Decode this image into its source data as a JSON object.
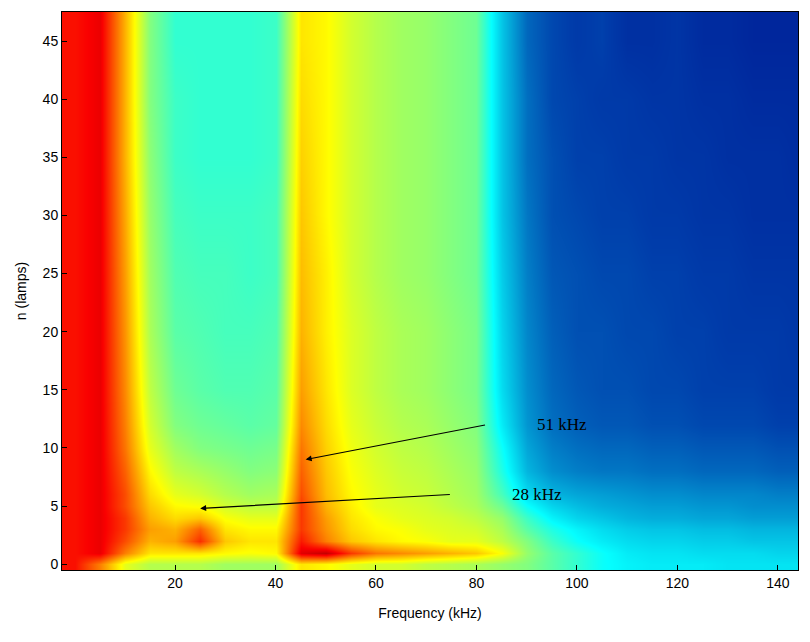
{
  "chart_data": {
    "type": "heatmap",
    "x_label": "Frequency (kHz)",
    "y_label": "n (lamps)",
    "xlim": [
      -2.5,
      144
    ],
    "ylim": [
      -0.5,
      47.5
    ],
    "xticks": [
      20,
      40,
      60,
      80,
      100,
      120,
      140
    ],
    "yticks": [
      0,
      5,
      10,
      15,
      20,
      25,
      30,
      35,
      40,
      45
    ],
    "color": "Jet",
    "zlim": [
      0,
      10
    ],
    "x": [
      0,
      5,
      10,
      15,
      20,
      25,
      30,
      35,
      40,
      45,
      50,
      55,
      60,
      65,
      70,
      75,
      80,
      85,
      90,
      95,
      100,
      105,
      110,
      115,
      120,
      125,
      130,
      135,
      140,
      145
    ],
    "y": [
      0,
      1,
      2,
      3,
      4,
      5,
      6,
      8,
      10,
      12,
      15,
      20,
      25,
      30,
      35,
      40,
      45
    ],
    "cells": [
      [
        8.6,
        7.5,
        6,
        5.5,
        5.5,
        5.5,
        5.3,
        5.3,
        5.3,
        6.5,
        6.3,
        6,
        5.8,
        5.8,
        5.6,
        5.5,
        5.4,
        5.2,
        5,
        4.6,
        4.2,
        3.8,
        3.6,
        3.5,
        3.5,
        3.5,
        3.4,
        3.4,
        3.4,
        3.4
      ],
      [
        8.6,
        8.9,
        7.5,
        6.5,
        6.5,
        6.5,
        6.3,
        6.2,
        6.3,
        9,
        9.3,
        8.2,
        7.6,
        7.4,
        7.2,
        7,
        6.8,
        6.2,
        5.2,
        4.6,
        4.2,
        3.8,
        3.5,
        3.4,
        3.4,
        3.3,
        3.3,
        3.3,
        3.2,
        3.2
      ],
      [
        8.6,
        8.9,
        8,
        7,
        7.2,
        8.3,
        6.8,
        6.5,
        6.5,
        8.5,
        7.5,
        6.8,
        6.5,
        6.3,
        6.2,
        6,
        6,
        5.6,
        5,
        4.3,
        3.8,
        3.5,
        3.3,
        3.2,
        3.2,
        3.1,
        3.1,
        3,
        3,
        3
      ],
      [
        8.6,
        8.9,
        8.2,
        7.2,
        7,
        7.8,
        6.5,
        6.3,
        6.3,
        8.2,
        7.3,
        6.6,
        6.3,
        6.2,
        6,
        5.9,
        5.8,
        5.4,
        4.6,
        4,
        3.6,
        3.3,
        3.1,
        3,
        3,
        2.9,
        2.9,
        2.8,
        2.8,
        2.8
      ],
      [
        8.6,
        8.9,
        8.2,
        7,
        6.6,
        6.8,
        6.2,
        6,
        6,
        8.2,
        7.2,
        6.5,
        6.2,
        6,
        5.9,
        5.8,
        5.6,
        5.2,
        4.3,
        3.6,
        3.2,
        3,
        2.8,
        2.7,
        2.7,
        2.6,
        2.6,
        2.5,
        2.5,
        2.5
      ],
      [
        8.6,
        8.9,
        8,
        6.8,
        6.3,
        6.2,
        5.8,
        5.6,
        5.6,
        8.2,
        7,
        6.4,
        6,
        5.9,
        5.8,
        5.6,
        5.4,
        4.8,
        3.8,
        3.2,
        2.9,
        2.7,
        2.6,
        2.5,
        2.5,
        2.4,
        2.4,
        2.3,
        2.3,
        2.3
      ],
      [
        8.6,
        8.9,
        8,
        6.6,
        6,
        5.8,
        5.5,
        5.3,
        5.4,
        8,
        6.9,
        6.3,
        6,
        5.8,
        5.7,
        5.5,
        5.3,
        4.4,
        3.3,
        2.8,
        2.6,
        2.5,
        2.4,
        2.3,
        2.3,
        2.2,
        2.2,
        2.2,
        2.1,
        2.1
      ],
      [
        8.6,
        8.9,
        7.8,
        6.3,
        5.6,
        5.4,
        5.2,
        5,
        5.1,
        7.8,
        6.8,
        6.2,
        5.9,
        5.7,
        5.6,
        5.4,
        5.2,
        4,
        2.8,
        2.3,
        2.1,
        2,
        2,
        1.9,
        1.9,
        1.8,
        1.8,
        1.8,
        1.7,
        1.7
      ],
      [
        8.6,
        8.9,
        7.6,
        6,
        5.3,
        5,
        4.9,
        4.8,
        4.9,
        7.6,
        6.7,
        6.1,
        5.8,
        5.6,
        5.5,
        5.3,
        5.1,
        3.8,
        2.6,
        2.1,
        1.9,
        1.8,
        1.8,
        1.7,
        1.7,
        1.6,
        1.6,
        1.6,
        1.5,
        1.5
      ],
      [
        8.6,
        8.9,
        7.5,
        5.8,
        5,
        4.8,
        4.7,
        4.6,
        4.7,
        7.4,
        6.6,
        6,
        5.7,
        5.5,
        5.4,
        5.2,
        5,
        3.5,
        2.4,
        1.9,
        1.7,
        1.6,
        1.6,
        1.5,
        1.5,
        1.4,
        1.4,
        1.4,
        1.3,
        1.3
      ],
      [
        8.6,
        8.9,
        7.4,
        5.6,
        4.8,
        4.6,
        4.5,
        4.5,
        4.6,
        7.2,
        6.5,
        5.9,
        5.6,
        5.4,
        5.3,
        5.1,
        4.9,
        3.3,
        2.3,
        1.8,
        1.6,
        1.5,
        1.5,
        1.4,
        1.4,
        1.3,
        1.3,
        1.3,
        1.2,
        1.2
      ],
      [
        8.6,
        8.9,
        7.3,
        5.4,
        4.6,
        4.5,
        4.4,
        4.4,
        4.5,
        7,
        6.4,
        5.9,
        5.6,
        5.4,
        5.3,
        5.1,
        4.9,
        3.2,
        2.2,
        1.7,
        1.5,
        1.5,
        1.4,
        1.4,
        1.3,
        1.3,
        1.2,
        1.2,
        1.2,
        1.1
      ],
      [
        8.6,
        8.9,
        7.2,
        5.3,
        4.5,
        4.4,
        4.4,
        4.3,
        4.4,
        6.9,
        6.4,
        5.8,
        5.5,
        5.3,
        5.2,
        5,
        4.8,
        3.1,
        2.1,
        1.6,
        1.5,
        1.4,
        1.4,
        1.3,
        1.3,
        1.2,
        1.2,
        1.1,
        1.1,
        1.1
      ],
      [
        8.6,
        8.9,
        7.1,
        5.2,
        4.4,
        4.3,
        4.3,
        4.3,
        4.4,
        6.8,
        6.3,
        5.8,
        5.5,
        5.3,
        5.2,
        5,
        4.8,
        3,
        2,
        1.5,
        1.4,
        1.3,
        1.3,
        1.2,
        1.2,
        1.1,
        1.1,
        1,
        1,
        1
      ],
      [
        8.6,
        8.9,
        7,
        5.1,
        4.3,
        4.2,
        4.2,
        4.2,
        4.3,
        6.7,
        6.3,
        5.8,
        5.5,
        5.3,
        5.2,
        5,
        4.8,
        3,
        1.9,
        1.5,
        1.3,
        1.3,
        1.2,
        1.2,
        1.1,
        1.1,
        1,
        1,
        1,
        0.9
      ],
      [
        8.6,
        8.9,
        7,
        5,
        4.3,
        4.2,
        4.2,
        4.2,
        4.3,
        6.6,
        6.3,
        5.8,
        5.5,
        5.3,
        5.2,
        5,
        4.8,
        3,
        1.9,
        1.4,
        1.3,
        1.2,
        1.2,
        1.1,
        1.1,
        1,
        1,
        0.9,
        0.9,
        0.9
      ],
      [
        8.6,
        8.9,
        7,
        5,
        4.2,
        4.2,
        4.2,
        4.2,
        4.3,
        6.5,
        6.3,
        5.8,
        5.5,
        5.3,
        5.2,
        5,
        4.8,
        3,
        1.8,
        1.4,
        1.2,
        1.3,
        1,
        1,
        1.1,
        0.9,
        0.9,
        0.8,
        0.8,
        0.8
      ]
    ],
    "annotations": [
      {
        "text": "51 kHz",
        "x": 97,
        "y": 12,
        "arrow_from": [
          82,
          12
        ],
        "arrow_to": [
          46,
          9
        ]
      },
      {
        "text": "28 kHz",
        "x": 92,
        "y": 6,
        "arrow_from": [
          75,
          6
        ],
        "arrow_to": [
          25,
          4.8
        ]
      }
    ]
  }
}
